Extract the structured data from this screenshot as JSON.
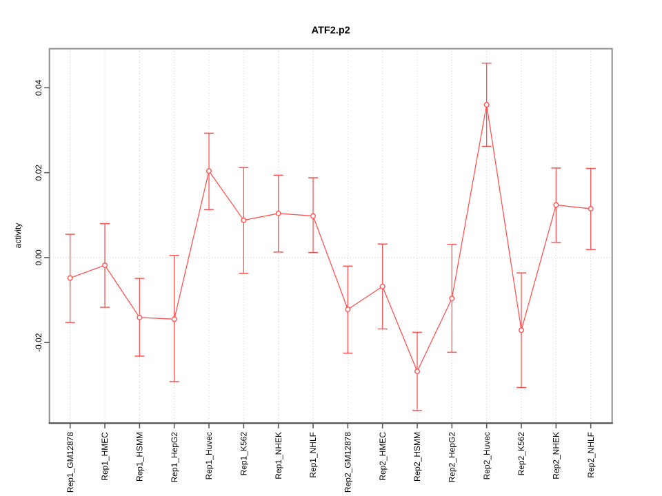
{
  "chart_data": {
    "type": "line",
    "title": "ATF2.p2",
    "xlabel": "",
    "ylabel": "activity",
    "legend": "none",
    "categories": [
      "Rep1_GM12878",
      "Rep1_HMEC",
      "Rep1_HSMM",
      "Rep1_HepG2",
      "Rep1_Huvec",
      "Rep1_K562",
      "Rep1_NHEK",
      "Rep1_NHLF",
      "Rep2_GM12878",
      "Rep2_HMEC",
      "Rep2_HSMM",
      "Rep2_HepG2",
      "Rep2_Huvec",
      "Rep2_K562",
      "Rep2_NHEK",
      "Rep2_NHLF"
    ],
    "series": [
      {
        "name": "activity",
        "values": [
          -0.0048,
          -0.0018,
          -0.0141,
          -0.0145,
          0.0204,
          0.0088,
          0.0104,
          0.0098,
          -0.0122,
          -0.0068,
          -0.0268,
          -0.0096,
          0.036,
          -0.0171,
          0.0124,
          0.0115
        ],
        "error_lower": [
          -0.0153,
          -0.0117,
          -0.0232,
          -0.0292,
          0.0113,
          -0.0037,
          0.0013,
          0.0012,
          -0.0225,
          -0.0168,
          -0.036,
          -0.0223,
          0.0262,
          -0.0306,
          0.0036,
          0.0019
        ],
        "error_upper": [
          0.0055,
          0.008,
          -0.0049,
          0.0005,
          0.0293,
          0.0212,
          0.0194,
          0.0188,
          -0.002,
          0.0032,
          -0.0176,
          0.0031,
          0.0458,
          -0.0036,
          0.0211,
          0.021
        ]
      }
    ],
    "ytick_labels": [
      "-0.02",
      "0.00",
      "0.02",
      "0.04"
    ],
    "ytick_values": [
      -0.02,
      0.0,
      0.02,
      0.04
    ],
    "ylim": [
      -0.039,
      0.0492
    ],
    "grid": {
      "vertical_dotted_per_category": true,
      "horizontal_dotted_zero_line": true
    },
    "colors": {
      "series": "#ff5252",
      "grid": "#c9c9c9",
      "border": "#8f8f8f",
      "axis_dark": "#4a4a4a",
      "tick": "#595959",
      "text": "#000000",
      "point_fill": "#ffffff"
    }
  }
}
